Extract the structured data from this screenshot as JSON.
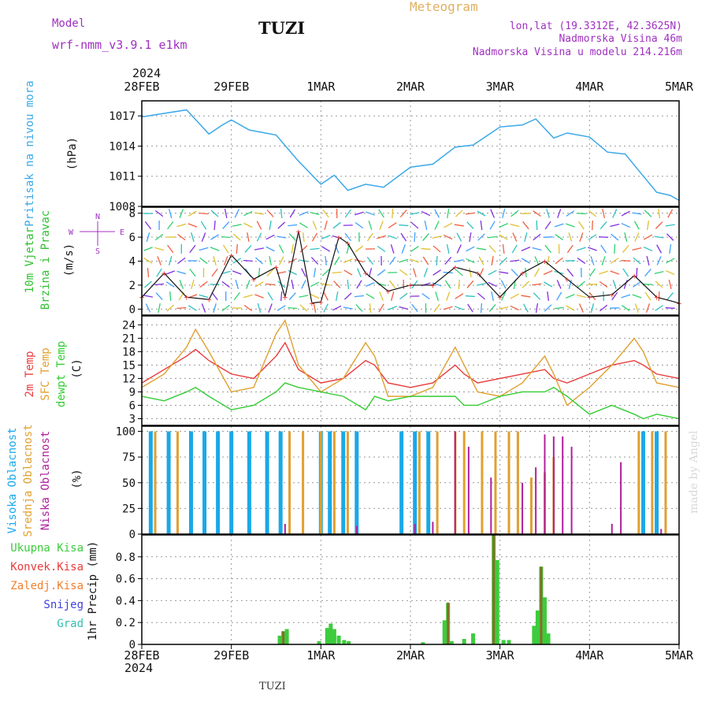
{
  "header": {
    "model_label": "Model",
    "model_name": "wrf-nmm_v3.9.1 e1km",
    "station": "TUZI",
    "product": "Meteogram",
    "lonlat": "lon,lat (19.3312E, 42.3625N)",
    "elevation": "Nadmorska Visina 46m",
    "model_elevation": "Nadmorska Visina u modelu 214.216m",
    "footer_station": "TUZI",
    "watermark": "made by Angel",
    "year_top": "2024",
    "year_bottom": "2024"
  },
  "colors": {
    "pressure": "#3aa8e8",
    "temp2m": "#e83c3c",
    "sfc_temp": "#e0a030",
    "dewpoint": "#33cc33",
    "high_cloud": "#1aa8e8",
    "mid_cloud": "#e0a030",
    "low_cloud": "#b0209e",
    "total_precip": "#3ccc3c",
    "conv_precip": "#e83c3c",
    "frozen_precip": "#f08030",
    "snow": "#4040e0",
    "graupel": "#30c0b0",
    "wind_title": "#30c030",
    "wind_units": "#a030c0",
    "header_purple": "#a030c0",
    "header_gold": "#e0b060"
  },
  "time_axis": [
    "28FEB",
    "29FEB",
    "1MAR",
    "2MAR",
    "3MAR",
    "4MAR",
    "5MAR"
  ],
  "panels": [
    {
      "id": "pressure",
      "labels": [
        "Pritisak na nivou mora"
      ],
      "unit": "(hPa)"
    },
    {
      "id": "wind",
      "labels": [
        "10m Vjetar",
        "Brzina i Pravac"
      ],
      "unit": "(m/s)",
      "compass": [
        "N",
        "E",
        "S",
        "W"
      ]
    },
    {
      "id": "temp",
      "labels": [
        "2m Temp",
        "SFC Temp",
        "dewpt Temp"
      ],
      "unit": "(C)"
    },
    {
      "id": "cloud",
      "labels": [
        "Visoka Oblacnost",
        "Srednja Oblacnost",
        "Niska Oblacnost"
      ],
      "unit": "(%)"
    },
    {
      "id": "precip",
      "labels": [
        "Ukupna Kisa",
        "Konvek.Kisa",
        "Zaledj.Kisa",
        "Snijeg",
        "Grad"
      ],
      "unit": "1hr Precip (mm)"
    }
  ],
  "chart_data": [
    {
      "type": "line",
      "ylabel": "(hPa)",
      "ylim": [
        1008,
        1018.5
      ],
      "yticks": [
        1008,
        1011,
        1014,
        1017
      ],
      "x": [
        0,
        0.5,
        0.75,
        0.9,
        1.0,
        1.2,
        1.5,
        1.75,
        2.0,
        2.15,
        2.3,
        2.5,
        2.7,
        3.0,
        3.25,
        3.5,
        3.7,
        3.9,
        4.0,
        4.25,
        4.4,
        4.6,
        4.75,
        5.0,
        5.2,
        5.4,
        5.5,
        5.75,
        5.9,
        6.0
      ],
      "series": [
        {
          "name": "Pritisak na nivou mora",
          "values": [
            1016.9,
            1017.6,
            1015.2,
            1016.1,
            1016.6,
            1015.6,
            1015.1,
            1012.5,
            1010.2,
            1011.1,
            1009.6,
            1010.2,
            1009.9,
            1011.9,
            1012.2,
            1013.9,
            1014.1,
            1015.3,
            1015.9,
            1016.1,
            1016.7,
            1014.8,
            1015.3,
            1014.9,
            1013.4,
            1013.2,
            1012.1,
            1009.4,
            1009.1,
            1008.6
          ]
        }
      ]
    },
    {
      "type": "line",
      "ylabel": "(m/s)",
      "ylim": [
        -0.5,
        8.5
      ],
      "yticks": [
        0,
        2,
        4,
        6,
        8
      ],
      "x": [
        0,
        0.25,
        0.5,
        0.75,
        1.0,
        1.25,
        1.5,
        1.6,
        1.75,
        1.9,
        2.0,
        2.2,
        2.3,
        2.5,
        2.75,
        3.0,
        3.25,
        3.5,
        3.75,
        4.0,
        4.25,
        4.5,
        4.75,
        5.0,
        5.25,
        5.5,
        5.75,
        6.0
      ],
      "series": [
        {
          "name": "10m Vjetar",
          "values": [
            1.0,
            3.0,
            1.0,
            0.8,
            4.5,
            2.5,
            3.5,
            1.0,
            6.5,
            0.5,
            0.6,
            6.0,
            5.5,
            3.0,
            1.5,
            2.0,
            2.0,
            3.5,
            3.0,
            1.0,
            3.0,
            4.0,
            2.5,
            1.0,
            1.2,
            2.8,
            1.0,
            0.5
          ]
        }
      ]
    },
    {
      "type": "line",
      "ylabel": "(C)",
      "ylim": [
        1.5,
        26
      ],
      "yticks": [
        3,
        6,
        9,
        12,
        15,
        18,
        21,
        24
      ],
      "x": [
        0,
        0.25,
        0.5,
        0.6,
        0.75,
        1.0,
        1.25,
        1.5,
        1.6,
        1.75,
        2.0,
        2.25,
        2.5,
        2.6,
        2.75,
        3.0,
        3.25,
        3.5,
        3.6,
        3.75,
        4.0,
        4.25,
        4.5,
        4.6,
        4.75,
        5.0,
        5.25,
        5.5,
        5.6,
        5.75,
        6.0
      ],
      "series": [
        {
          "name": "2m Temp",
          "values": [
            11,
            14,
            17,
            18.5,
            16,
            13,
            12,
            17,
            20,
            14,
            11,
            12,
            16,
            15,
            11,
            10,
            11,
            15,
            13,
            11,
            12,
            13,
            14,
            12,
            11,
            13,
            15,
            16,
            15,
            13,
            12
          ]
        },
        {
          "name": "SFC Temp",
          "values": [
            10,
            13,
            19,
            23,
            18,
            9,
            10,
            22,
            25,
            15,
            9,
            12,
            20,
            17,
            8,
            8,
            10,
            19,
            15,
            9,
            8,
            11,
            17,
            13,
            6,
            10,
            15,
            21,
            18,
            11,
            10
          ]
        },
        {
          "name": "dewpt Temp",
          "values": [
            8,
            7,
            9,
            10,
            8,
            5,
            6,
            9,
            11,
            10,
            9,
            8,
            5,
            8,
            7,
            8,
            8,
            8,
            6,
            6,
            8,
            9,
            9,
            10,
            8,
            4,
            6,
            4,
            3,
            4,
            3
          ]
        }
      ]
    },
    {
      "type": "bar",
      "ylabel": "(%)",
      "ylim": [
        0,
        105
      ],
      "yticks": [
        0,
        25,
        50,
        75,
        100
      ],
      "series": [
        {
          "name": "Visoka Oblacnost",
          "values": [
            [
              0.1,
              100
            ],
            [
              0.3,
              100
            ],
            [
              0.55,
              100
            ],
            [
              0.7,
              100
            ],
            [
              0.85,
              100
            ],
            [
              1.0,
              100
            ],
            [
              1.2,
              100
            ],
            [
              1.4,
              100
            ],
            [
              1.55,
              100
            ],
            [
              2.0,
              100
            ],
            [
              2.1,
              100
            ],
            [
              2.25,
              100
            ],
            [
              2.4,
              100
            ],
            [
              2.9,
              100
            ],
            [
              3.05,
              100
            ],
            [
              3.2,
              100
            ],
            [
              5.6,
              100
            ],
            [
              5.75,
              100
            ]
          ]
        },
        {
          "name": "Srednja Oblacnost",
          "values": [
            [
              0.15,
              100
            ],
            [
              0.4,
              100
            ],
            [
              1.65,
              100
            ],
            [
              1.8,
              100
            ],
            [
              2.0,
              100
            ],
            [
              2.15,
              100
            ],
            [
              2.3,
              100
            ],
            [
              3.1,
              100
            ],
            [
              3.3,
              100
            ],
            [
              3.5,
              100
            ],
            [
              3.6,
              100
            ],
            [
              3.8,
              100
            ],
            [
              3.95,
              100
            ],
            [
              4.1,
              100
            ],
            [
              4.2,
              100
            ],
            [
              4.35,
              55
            ],
            [
              4.5,
              60
            ],
            [
              4.6,
              75
            ],
            [
              5.55,
              100
            ],
            [
              5.7,
              100
            ],
            [
              5.85,
              100
            ]
          ]
        },
        {
          "name": "Niska Oblacnost",
          "values": [
            [
              1.6,
              10
            ],
            [
              2.4,
              8
            ],
            [
              3.05,
              10
            ],
            [
              3.25,
              12
            ],
            [
              3.5,
              100
            ],
            [
              3.65,
              85
            ],
            [
              3.9,
              55
            ],
            [
              4.25,
              50
            ],
            [
              4.4,
              65
            ],
            [
              4.5,
              97
            ],
            [
              4.6,
              95
            ],
            [
              4.7,
              95
            ],
            [
              4.8,
              85
            ],
            [
              5.25,
              10
            ],
            [
              5.35,
              70
            ],
            [
              5.8,
              5
            ]
          ]
        }
      ]
    },
    {
      "type": "bar",
      "ylabel": "1hr Precip (mm)",
      "ylim": [
        0,
        1.0
      ],
      "yticks": [
        0,
        0.2,
        0.4,
        0.6,
        0.8
      ],
      "series": [
        {
          "name": "Ukupna Kisa",
          "values": [
            [
              1.54,
              0.08
            ],
            [
              1.58,
              0.12
            ],
            [
              1.62,
              0.14
            ],
            [
              1.98,
              0.03
            ],
            [
              2.07,
              0.15
            ],
            [
              2.11,
              0.19
            ],
            [
              2.15,
              0.14
            ],
            [
              2.2,
              0.08
            ],
            [
              2.26,
              0.04
            ],
            [
              2.31,
              0.03
            ],
            [
              3.14,
              0.02
            ],
            [
              3.38,
              0.22
            ],
            [
              3.42,
              0.38
            ],
            [
              3.46,
              0.03
            ],
            [
              3.6,
              0.05
            ],
            [
              3.7,
              0.1
            ],
            [
              3.93,
              1.0
            ],
            [
              3.97,
              0.77
            ],
            [
              4.04,
              0.04
            ],
            [
              4.1,
              0.04
            ],
            [
              4.38,
              0.17
            ],
            [
              4.42,
              0.31
            ],
            [
              4.46,
              0.71
            ],
            [
              4.5,
              0.43
            ],
            [
              4.54,
              0.1
            ]
          ]
        },
        {
          "name": "Konvek.Kisa",
          "values": [
            [
              1.58,
              0.12
            ],
            [
              3.42,
              0.38
            ],
            [
              3.93,
              1.0
            ],
            [
              4.46,
              0.71
            ]
          ]
        }
      ]
    }
  ]
}
